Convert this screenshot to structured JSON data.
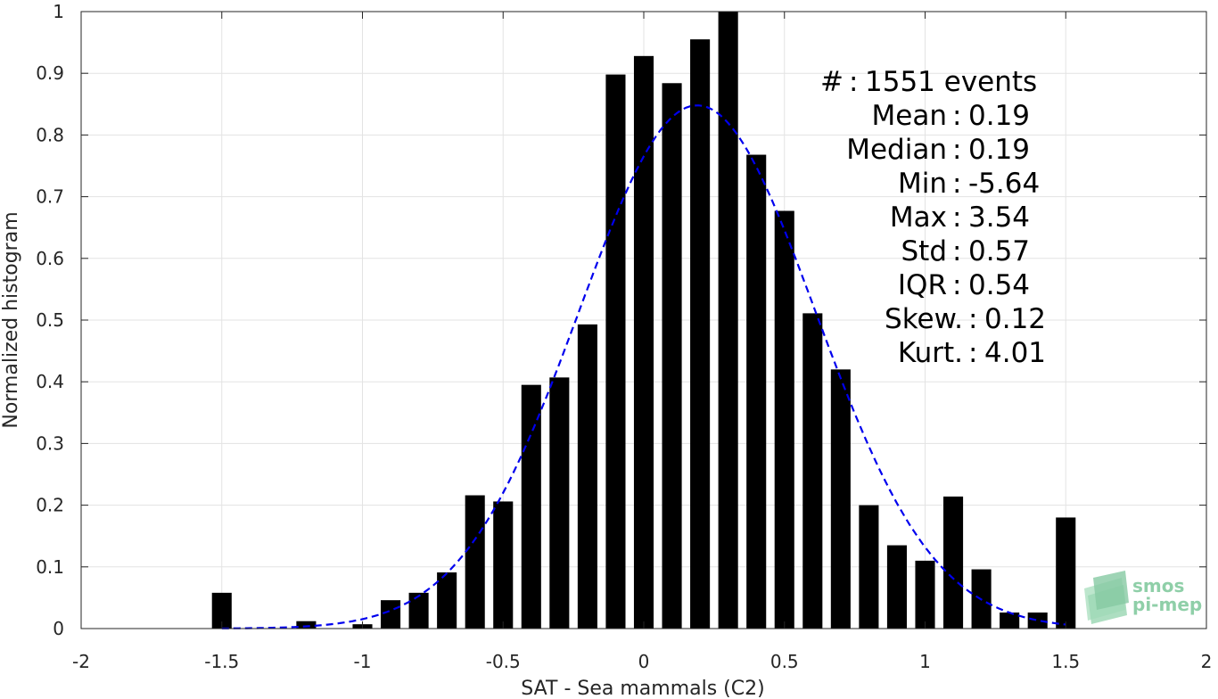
{
  "chart_data": {
    "type": "bar",
    "xlabel": "SAT - Sea mammals (C2)",
    "ylabel": "Normalized histogram",
    "xlim": [
      -2,
      2
    ],
    "ylim": [
      0,
      1
    ],
    "xticks": [
      -2,
      -1.5,
      -1,
      -0.5,
      0,
      0.5,
      1,
      1.5,
      2
    ],
    "xtick_labels": [
      "-2",
      "-1.5",
      "-1",
      "-0.5",
      "0",
      "0.5",
      "1",
      "1.5",
      "2"
    ],
    "yticks": [
      0,
      0.1,
      0.2,
      0.3,
      0.4,
      0.5,
      0.6,
      0.7,
      0.8,
      0.9,
      1
    ],
    "ytick_labels": [
      "0",
      "0.1",
      "0.2",
      "0.3",
      "0.4",
      "0.5",
      "0.6",
      "0.7",
      "0.8",
      "0.9",
      "1"
    ],
    "grid": true,
    "bar_width": 0.07,
    "bar_color": "#000000",
    "bins": [
      {
        "x": -1.5,
        "y": 0.058
      },
      {
        "x": -1.2,
        "y": 0.012
      },
      {
        "x": -1.0,
        "y": 0.007
      },
      {
        "x": -0.9,
        "y": 0.046
      },
      {
        "x": -0.8,
        "y": 0.058
      },
      {
        "x": -0.7,
        "y": 0.091
      },
      {
        "x": -0.6,
        "y": 0.216
      },
      {
        "x": -0.5,
        "y": 0.206
      },
      {
        "x": -0.4,
        "y": 0.395
      },
      {
        "x": -0.3,
        "y": 0.407
      },
      {
        "x": -0.2,
        "y": 0.493
      },
      {
        "x": -0.1,
        "y": 0.898
      },
      {
        "x": 0.0,
        "y": 0.928
      },
      {
        "x": 0.1,
        "y": 0.884
      },
      {
        "x": 0.2,
        "y": 0.955
      },
      {
        "x": 0.3,
        "y": 1.0
      },
      {
        "x": 0.4,
        "y": 0.768
      },
      {
        "x": 0.5,
        "y": 0.677
      },
      {
        "x": 0.6,
        "y": 0.511
      },
      {
        "x": 0.7,
        "y": 0.42
      },
      {
        "x": 0.8,
        "y": 0.2
      },
      {
        "x": 0.9,
        "y": 0.135
      },
      {
        "x": 1.0,
        "y": 0.11
      },
      {
        "x": 1.1,
        "y": 0.214
      },
      {
        "x": 1.2,
        "y": 0.096
      },
      {
        "x": 1.3,
        "y": 0.026
      },
      {
        "x": 1.4,
        "y": 0.026
      },
      {
        "x": 1.5,
        "y": 0.18
      }
    ],
    "fit_curve": {
      "type": "gaussian",
      "line_style": "dashed",
      "color": "#0000ee",
      "amplitude": 0.848,
      "mean": 0.19,
      "std": 0.42,
      "x_range": [
        -1.5,
        1.5
      ]
    },
    "stats": [
      {
        "label": "#  ",
        "value": "1551 events"
      },
      {
        "label": "Mean",
        "value": "0.19"
      },
      {
        "label": "Median",
        "value": "0.19"
      },
      {
        "label": "Min",
        "value": "-5.64"
      },
      {
        "label": "Max",
        "value": "3.54"
      },
      {
        "label": "Std",
        "value": "0.57"
      },
      {
        "label": "IQR",
        "value": "0.54"
      },
      {
        "label": "Skew.",
        "value": "0.12"
      },
      {
        "label": "Kurt.",
        "value": "4.01"
      }
    ]
  },
  "watermark": {
    "line1": "smos",
    "line2": "pi-mep",
    "color": "#8fcfa8"
  }
}
